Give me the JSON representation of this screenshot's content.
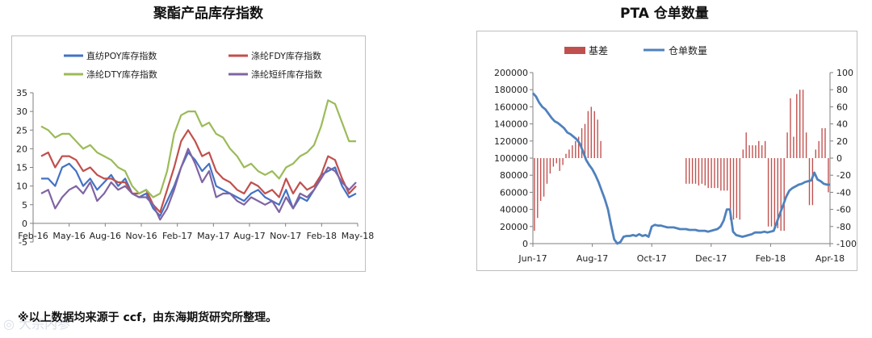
{
  "note": "※以上数据均来源于 ccf，由东海期货研究所整理。",
  "watermark": "大宗内参",
  "chart_data": [
    {
      "type": "line",
      "title": "聚酯产品库存指数",
      "x_tick_labels": [
        "Feb-16",
        "May-16",
        "Aug-16",
        "Nov-16",
        "Feb-17",
        "May-17",
        "Aug-17",
        "Nov-17",
        "Feb-18",
        "May-18"
      ],
      "x_range": [
        "2016-02",
        "2018-05"
      ],
      "ylim": [
        -5,
        35
      ],
      "y_ticks": [
        -5,
        0,
        5,
        10,
        15,
        20,
        25,
        30,
        35
      ],
      "legend": "top, two columns",
      "grid": false,
      "series": [
        {
          "name": "直纺POY库存指数",
          "color": "#4472c4",
          "values": [
            12,
            12,
            10,
            15,
            16,
            14,
            10,
            12,
            9,
            11,
            13,
            10,
            12,
            8,
            7,
            8,
            4,
            2,
            6,
            10,
            15,
            19,
            17,
            14,
            16,
            10,
            9,
            8,
            7,
            6,
            8,
            9,
            7,
            6,
            5,
            9,
            4,
            7,
            6,
            9,
            13,
            14,
            15,
            10,
            7,
            8
          ]
        },
        {
          "name": "涤纶FDY库存指数",
          "color": "#c0504d",
          "values": [
            18,
            19,
            15,
            18,
            18,
            17,
            14,
            15,
            13,
            12,
            12,
            11,
            11,
            8,
            8,
            9,
            5,
            3,
            9,
            15,
            22,
            25,
            22,
            18,
            19,
            14,
            12,
            11,
            9,
            8,
            11,
            10,
            8,
            9,
            7,
            12,
            8,
            11,
            9,
            10,
            13,
            18,
            17,
            12,
            8,
            10
          ]
        },
        {
          "name": "涤纶DTY库存指数",
          "color": "#9bbb59",
          "values": [
            26,
            25,
            23,
            24,
            24,
            22,
            20,
            21,
            19,
            18,
            17,
            15,
            14,
            10,
            8,
            9,
            7,
            8,
            14,
            24,
            29,
            30,
            30,
            26,
            27,
            24,
            23,
            20,
            18,
            15,
            16,
            14,
            13,
            14,
            12,
            15,
            16,
            18,
            19,
            21,
            26,
            33,
            32,
            27,
            22,
            22
          ]
        },
        {
          "name": "涤纶短纤库存指数",
          "color": "#8064a2",
          "values": [
            8,
            9,
            4,
            7,
            9,
            10,
            8,
            11,
            6,
            8,
            11,
            9,
            10,
            8,
            7,
            7,
            5,
            1,
            4,
            9,
            15,
            20,
            16,
            11,
            14,
            7,
            8,
            8,
            6,
            5,
            7,
            6,
            5,
            6,
            3,
            7,
            4,
            8,
            7,
            9,
            12,
            15,
            14,
            11,
            9,
            11
          ]
        }
      ]
    },
    {
      "type": "bar+line",
      "title": "PTA 仓单数量",
      "x_tick_labels": [
        "Jun-17",
        "Aug-17",
        "Oct-17",
        "Dec-17",
        "Feb-18",
        "Apr-18"
      ],
      "x_range": [
        "2017-06",
        "2018-04"
      ],
      "left_axis": {
        "ylim": [
          0,
          200000
        ],
        "ticks": [
          0,
          20000,
          40000,
          60000,
          80000,
          100000,
          120000,
          140000,
          160000,
          180000,
          200000
        ]
      },
      "right_axis": {
        "ylim": [
          -100,
          100
        ],
        "ticks": [
          -100,
          -80,
          -60,
          -40,
          -20,
          0,
          20,
          40,
          60,
          80,
          100
        ]
      },
      "legend": "top-left",
      "grid": false,
      "series": [
        {
          "name": "基差",
          "type": "bar",
          "axis": "right",
          "color": "#c0504d",
          "values": [
            -85,
            -70,
            -50,
            -45,
            -30,
            -18,
            -10,
            -6,
            -15,
            -8,
            5,
            10,
            15,
            20,
            25,
            35,
            40,
            55,
            60,
            55,
            45,
            20,
            0,
            0,
            0,
            0,
            0,
            0,
            0,
            0,
            0,
            0,
            0,
            0,
            0,
            0,
            0,
            0,
            0,
            0,
            0,
            0,
            0,
            0,
            0,
            0,
            0,
            0,
            -30,
            -30,
            -30,
            -30,
            -32,
            -30,
            -32,
            -35,
            -35,
            -35,
            -35,
            -38,
            -38,
            -38,
            -72,
            -72,
            -70,
            -72,
            10,
            30,
            15,
            15,
            15,
            20,
            15,
            20,
            -80,
            -80,
            -82,
            -82,
            -85,
            -85,
            30,
            70,
            25,
            75,
            80,
            80,
            30,
            -55,
            -55,
            10,
            20,
            35,
            35,
            -40
          ]
        },
        {
          "name": "仓单数量",
          "type": "line",
          "axis": "left",
          "color": "#4f81bd",
          "values": [
            176000,
            172000,
            165000,
            160000,
            157000,
            152000,
            147000,
            143000,
            141000,
            138000,
            135000,
            130000,
            128000,
            125000,
            122000,
            117000,
            108000,
            98000,
            92000,
            87000,
            80000,
            72000,
            62000,
            52000,
            40000,
            22000,
            5000,
            0,
            2000,
            8000,
            9000,
            9000,
            10000,
            9000,
            11000,
            9000,
            10000,
            8000,
            20000,
            22000,
            21000,
            21000,
            20000,
            19000,
            19000,
            19000,
            18000,
            17000,
            17000,
            17000,
            16000,
            16000,
            16000,
            15000,
            15000,
            15000,
            14000,
            15000,
            16000,
            17000,
            20000,
            27000,
            40000,
            40000,
            14000,
            10000,
            9000,
            8000,
            9000,
            10000,
            11000,
            13000,
            13000,
            13000,
            14000,
            13000,
            14000,
            15000,
            25000,
            35000,
            45000,
            55000,
            62000,
            65000,
            67000,
            69000,
            70000,
            72000,
            73000,
            74000,
            83000,
            75000,
            73000,
            70000,
            69000,
            69000
          ]
        }
      ]
    }
  ]
}
